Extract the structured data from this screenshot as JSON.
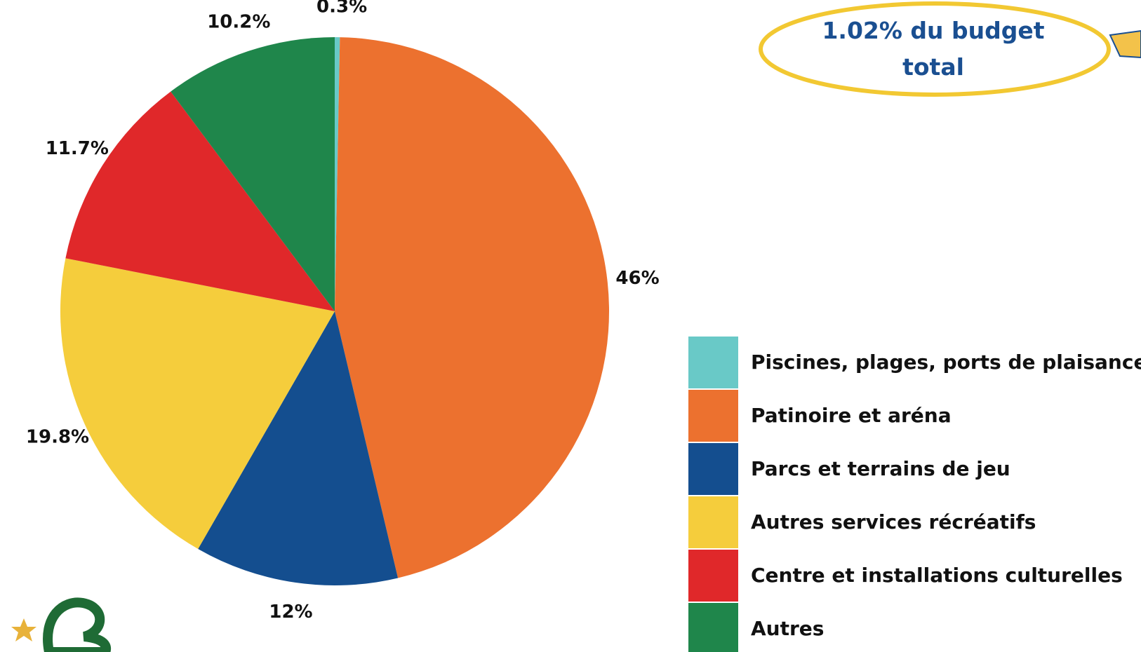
{
  "chart_data": {
    "type": "pie",
    "categories": [
      "Piscines, plages, ports de plaisance",
      "Patinoire et aréna",
      "Parcs et terrains de jeu",
      "Autres services récréatifs",
      "Centre et installations culturelles",
      "Autres"
    ],
    "values": [
      0.3,
      46,
      12,
      19.8,
      11.7,
      10.2
    ],
    "value_labels": [
      "0.3%",
      "46%",
      "12%",
      "19.8%",
      "11.7%",
      "10.2%"
    ],
    "colors": [
      "#69c9c7",
      "#ec712f",
      "#144e8f",
      "#f5cd3c",
      "#e0282a",
      "#1f864b"
    ],
    "annotation": "1.02% du budget total"
  }
}
